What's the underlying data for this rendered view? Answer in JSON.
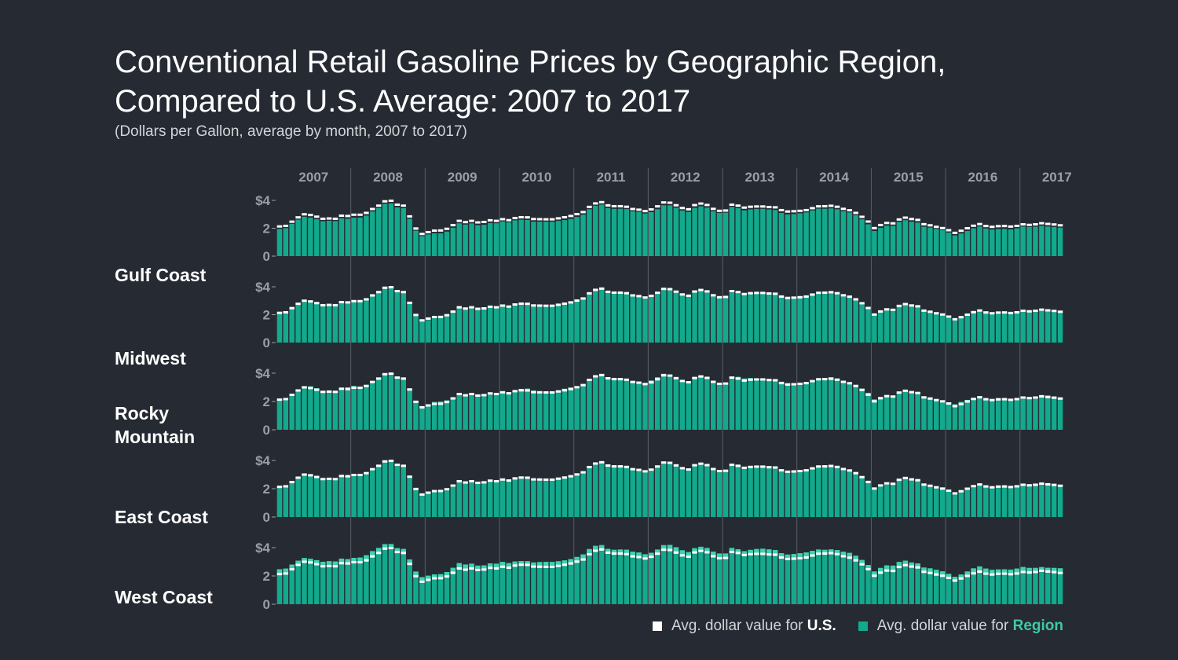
{
  "title": "Conventional Retail Gasoline Prices by Geographic Region,\nCompared to U.S. Average: 2007 to 2017",
  "subtitle": "(Dollars per Gallon, average by month, 2007 to 2017)",
  "legend": {
    "us_prefix": "Avg. dollar value for ",
    "us_bold": "U.S.",
    "region_prefix": "Avg. dollar value for ",
    "region_bold": "Region"
  },
  "colors": {
    "background": "#262a33",
    "region_bar": "#12a98c",
    "region_bar_above": "#3fd2b0",
    "us_marker": "#ffffff",
    "axis_text": "#9a9ea6"
  },
  "chart_data": {
    "type": "bar",
    "x_unit": "month",
    "years": [
      "2007",
      "2008",
      "2009",
      "2010",
      "2011",
      "2012",
      "2013",
      "2014",
      "2015",
      "2016",
      "2017"
    ],
    "months_per_year": [
      12,
      12,
      12,
      12,
      12,
      12,
      12,
      12,
      12,
      12,
      7
    ],
    "ylim": [
      0,
      4
    ],
    "y_ticks": [
      "0",
      "2",
      "$4"
    ],
    "us_average": [
      2.13,
      2.17,
      2.47,
      2.78,
      3.0,
      2.95,
      2.83,
      2.68,
      2.7,
      2.68,
      2.9,
      2.88,
      2.97,
      2.97,
      3.1,
      3.38,
      3.62,
      3.93,
      3.97,
      3.69,
      3.62,
      2.85,
      1.98,
      1.59,
      1.72,
      1.83,
      1.84,
      1.96,
      2.22,
      2.53,
      2.44,
      2.53,
      2.42,
      2.45,
      2.57,
      2.53,
      2.65,
      2.58,
      2.73,
      2.79,
      2.78,
      2.66,
      2.65,
      2.64,
      2.64,
      2.71,
      2.79,
      2.88,
      3.01,
      3.16,
      3.53,
      3.78,
      3.87,
      3.64,
      3.58,
      3.58,
      3.54,
      3.38,
      3.33,
      3.23,
      3.35,
      3.57,
      3.85,
      3.83,
      3.65,
      3.45,
      3.36,
      3.66,
      3.77,
      3.67,
      3.39,
      3.25,
      3.27,
      3.69,
      3.62,
      3.48,
      3.54,
      3.56,
      3.56,
      3.52,
      3.5,
      3.3,
      3.2,
      3.22,
      3.25,
      3.3,
      3.44,
      3.57,
      3.58,
      3.61,
      3.54,
      3.39,
      3.29,
      3.1,
      2.82,
      2.48,
      2.01,
      2.23,
      2.38,
      2.35,
      2.63,
      2.76,
      2.66,
      2.6,
      2.29,
      2.21,
      2.1,
      2.01,
      1.86,
      1.67,
      1.82,
      2.0,
      2.18,
      2.3,
      2.16,
      2.1,
      2.15,
      2.16,
      2.12,
      2.17,
      2.28,
      2.24,
      2.28,
      2.36,
      2.31,
      2.27,
      2.21
    ],
    "regions": [
      {
        "name": "Gulf Coast",
        "label_lines": [
          "Gulf Coast"
        ],
        "offset": -0.18,
        "noise": 0.03
      },
      {
        "name": "Midwest",
        "label_lines": [
          "Midwest"
        ],
        "offset": -0.03,
        "noise": 0.07
      },
      {
        "name": "Rocky Mountain",
        "label_lines": [
          "Rocky",
          "Mountain"
        ],
        "offset": 0.05,
        "noise": 0.1
      },
      {
        "name": "East Coast",
        "label_lines": [
          "East Coast"
        ],
        "offset": -0.05,
        "noise": 0.04
      },
      {
        "name": "West Coast",
        "label_lines": [
          "West Coast"
        ],
        "offset": 0.32,
        "noise": 0.06
      }
    ]
  }
}
